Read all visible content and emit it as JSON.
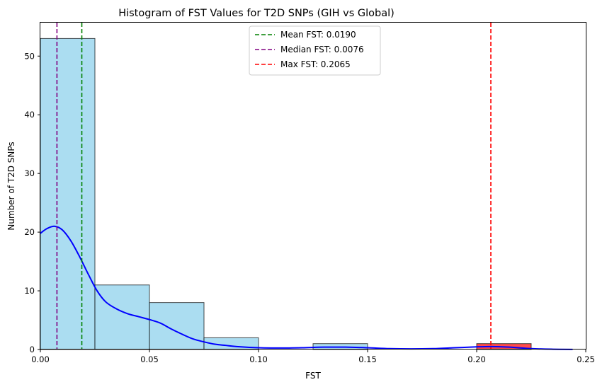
{
  "chart_data": {
    "type": "bar",
    "title": "Histogram of FST Values for T2D SNPs (GIH vs Global)",
    "xlabel": "FST",
    "ylabel": "Number of T2D SNPs",
    "xlim": [
      0,
      0.25
    ],
    "ylim": [
      0,
      55.7
    ],
    "xticks": [
      0,
      0.05,
      0.1,
      0.15,
      0.2,
      0.25
    ],
    "xtick_labels": [
      "0.00",
      "0.05",
      "0.10",
      "0.15",
      "0.20",
      "0.25"
    ],
    "yticks": [
      0,
      10,
      20,
      30,
      40,
      50
    ],
    "ytick_labels": [
      "0",
      "10",
      "20",
      "30",
      "40",
      "50"
    ],
    "grid": false,
    "legend_position": "top-center",
    "bins": [
      {
        "x0": 0.0,
        "x1": 0.025,
        "count": 53,
        "color": "#87ceeb"
      },
      {
        "x0": 0.025,
        "x1": 0.05,
        "count": 11,
        "color": "#87ceeb"
      },
      {
        "x0": 0.05,
        "x1": 0.075,
        "count": 8,
        "color": "#87ceeb"
      },
      {
        "x0": 0.075,
        "x1": 0.1,
        "count": 2,
        "color": "#87ceeb"
      },
      {
        "x0": 0.1,
        "x1": 0.125,
        "count": 0,
        "color": "#87ceeb"
      },
      {
        "x0": 0.125,
        "x1": 0.15,
        "count": 1,
        "color": "#87ceeb"
      },
      {
        "x0": 0.15,
        "x1": 0.175,
        "count": 0,
        "color": "#87ceeb"
      },
      {
        "x0": 0.175,
        "x1": 0.2,
        "count": 0,
        "color": "#87ceeb"
      },
      {
        "x0": 0.2,
        "x1": 0.225,
        "count": 1,
        "color": "#ff0000"
      }
    ],
    "kde": {
      "color": "#0000ff",
      "x": [
        0.0,
        0.003,
        0.0065,
        0.01,
        0.014,
        0.018,
        0.022,
        0.026,
        0.03,
        0.035,
        0.04,
        0.045,
        0.05,
        0.055,
        0.06,
        0.065,
        0.07,
        0.075,
        0.08,
        0.085,
        0.09,
        0.1,
        0.11,
        0.12,
        0.13,
        0.14,
        0.15,
        0.16,
        0.17,
        0.18,
        0.19,
        0.2,
        0.207,
        0.215,
        0.225,
        0.235,
        0.244
      ],
      "y": [
        19.8,
        20.6,
        21.0,
        20.4,
        18.5,
        15.8,
        12.8,
        10.0,
        8.1,
        6.9,
        6.1,
        5.6,
        5.1,
        4.5,
        3.5,
        2.6,
        1.8,
        1.3,
        0.9,
        0.7,
        0.5,
        0.3,
        0.25,
        0.3,
        0.4,
        0.4,
        0.3,
        0.15,
        0.1,
        0.15,
        0.3,
        0.45,
        0.5,
        0.4,
        0.15,
        0.05,
        0.02
      ]
    },
    "reference_lines": [
      {
        "name": "Mean FST: 0.0190",
        "x": 0.019,
        "color": "#008000"
      },
      {
        "name": "Median FST: 0.0076",
        "x": 0.0076,
        "color": "#800080"
      },
      {
        "name": "Max FST: 0.2065",
        "x": 0.2065,
        "color": "#ff0000"
      }
    ]
  }
}
